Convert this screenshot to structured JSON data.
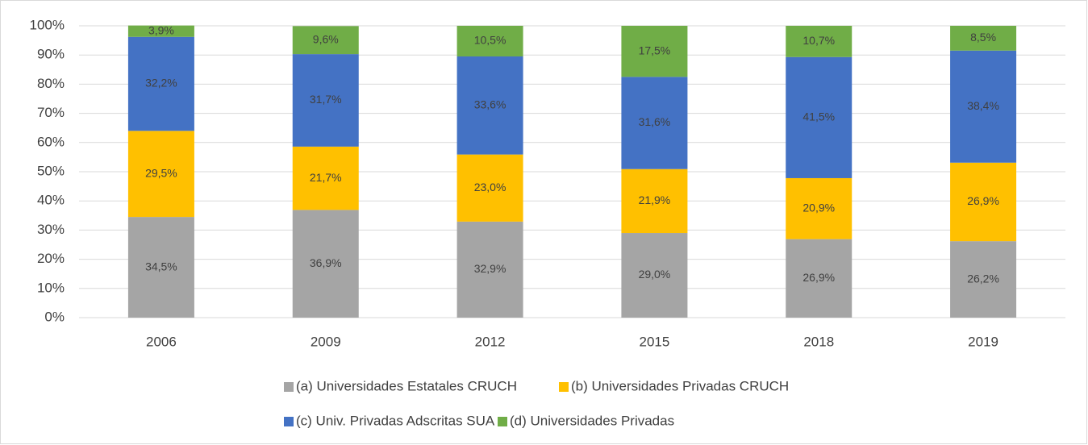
{
  "chart_data": {
    "type": "stacked_bar",
    "categories": [
      "2006",
      "2009",
      "2012",
      "2015",
      "2018",
      "2019"
    ],
    "series": [
      {
        "name": "(a) Universidades Estatales CRUCH",
        "color": "#a5a5a5",
        "values": [
          34.5,
          36.9,
          32.9,
          29.0,
          26.9,
          26.2
        ],
        "value_labels": [
          "34,5%",
          "36,9%",
          "32,9%",
          "29,0%",
          "26,9%",
          "26,2%"
        ]
      },
      {
        "name": "(b) Universidades Privadas CRUCH",
        "color": "#ffc000",
        "values": [
          29.5,
          21.7,
          23.0,
          21.9,
          20.9,
          26.9
        ],
        "value_labels": [
          "29,5%",
          "21,7%",
          "23,0%",
          "21,9%",
          "20,9%",
          "26,9%"
        ]
      },
      {
        "name": "(c) Univ. Privadas Adscritas SUA",
        "color": "#4472c4",
        "values": [
          32.2,
          31.7,
          33.6,
          31.6,
          41.5,
          38.4
        ],
        "value_labels": [
          "32,2%",
          "31,7%",
          "33,6%",
          "31,6%",
          "41,5%",
          "38,4%"
        ]
      },
      {
        "name": "(d) Universidades Privadas",
        "color": "#70ad47",
        "values": [
          3.9,
          9.6,
          10.5,
          17.5,
          10.7,
          8.5
        ],
        "value_labels": [
          "3,9%",
          "9,6%",
          "10,5%",
          "17,5%",
          "10,7%",
          "8,5%"
        ]
      }
    ],
    "ylim": [
      0,
      100
    ],
    "yticks": [
      {
        "value": 0,
        "label": "0%"
      },
      {
        "value": 10,
        "label": "10%"
      },
      {
        "value": 20,
        "label": "20%"
      },
      {
        "value": 30,
        "label": "30%"
      },
      {
        "value": 40,
        "label": "40%"
      },
      {
        "value": 50,
        "label": "50%"
      },
      {
        "value": 60,
        "label": "60%"
      },
      {
        "value": 70,
        "label": "70%"
      },
      {
        "value": 80,
        "label": "80%"
      },
      {
        "value": 90,
        "label": "90%"
      },
      {
        "value": 100,
        "label": "100%"
      }
    ],
    "grid": true,
    "legend": "bottom"
  }
}
